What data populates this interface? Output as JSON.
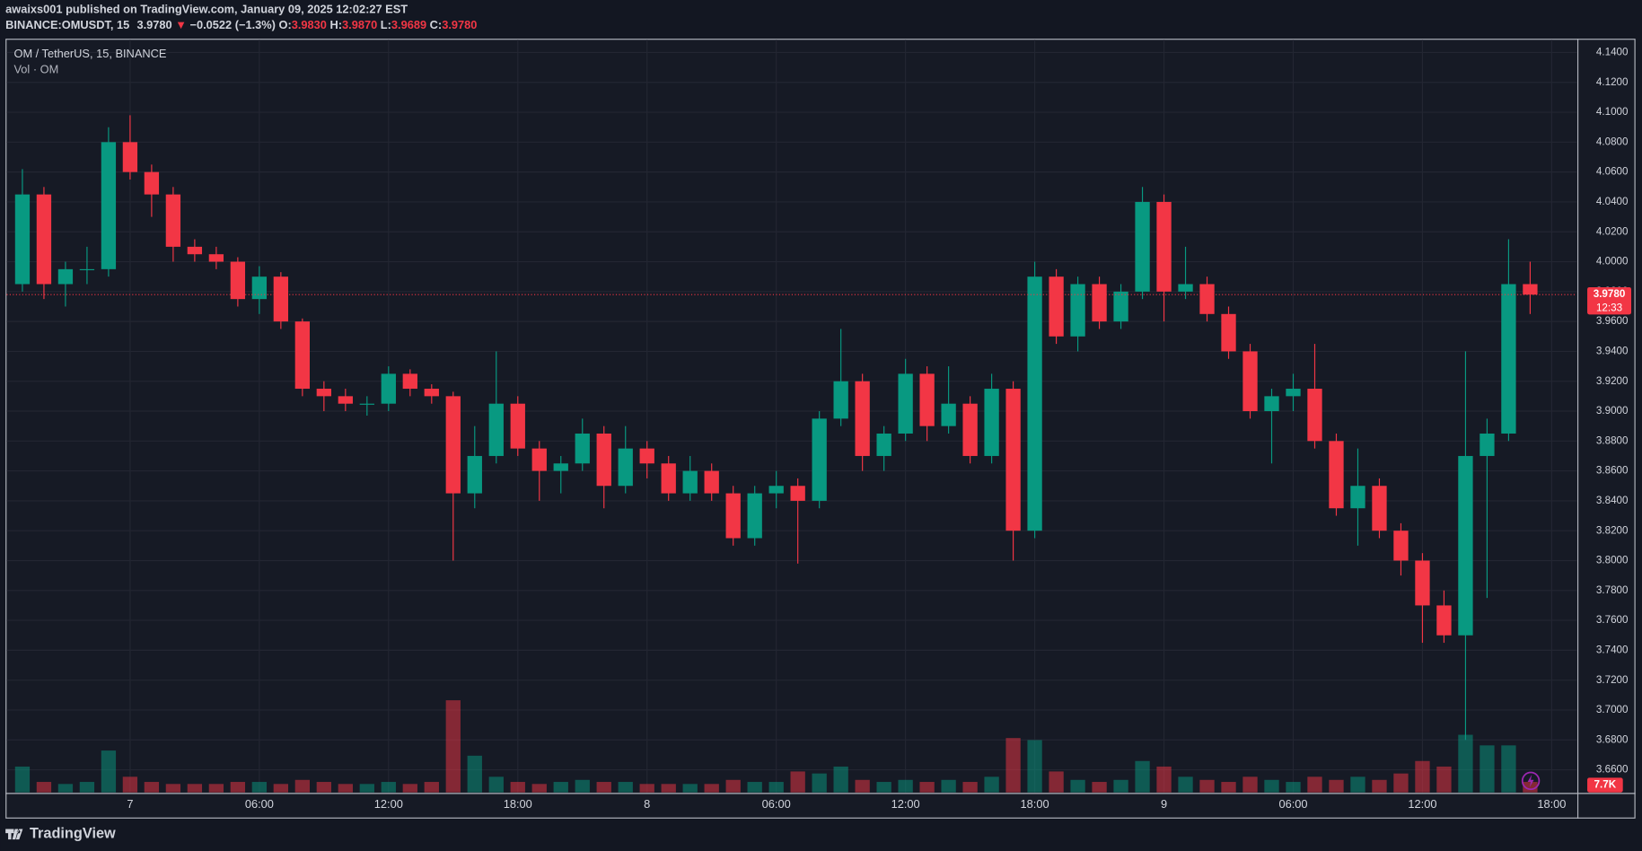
{
  "header": {
    "publisher": "awaixs001 published on TradingView.com, January 09, 2025 12:02:27 EST",
    "symbol": "BINANCE:OMUSDT, 15",
    "last": {
      "value": 3.978,
      "label": "3.9780"
    },
    "arrow": "▼",
    "change": "−0.0522 (−1.3%)",
    "open_label": "O:",
    "open": {
      "value": 3.983,
      "label": "3.9830"
    },
    "high_label": "H:",
    "high": {
      "value": 3.987,
      "label": "3.9870"
    },
    "low_label": "L:",
    "low": {
      "value": 3.9689,
      "label": "3.9689"
    },
    "close_label": "C:",
    "close": {
      "value": 3.978,
      "label": "3.9780"
    }
  },
  "legend": {
    "title": "OM / TetherUS, 15, BINANCE",
    "volume": "Vol · OM"
  },
  "logo": "TradingView",
  "chart_data": {
    "type": "candlestick",
    "up_color": "#089981",
    "down_color": "#f23645",
    "grid": true,
    "categories": [
      null,
      null,
      null,
      null,
      null,
      "7",
      null,
      null,
      null,
      null,
      null,
      "06:00",
      null,
      null,
      null,
      null,
      null,
      "12:00",
      null,
      null,
      null,
      null,
      null,
      "18:00",
      null,
      null,
      null,
      null,
      null,
      "8",
      null,
      null,
      null,
      null,
      null,
      "06:00",
      null,
      null,
      null,
      null,
      null,
      "12:00",
      null,
      null,
      null,
      null,
      null,
      "18:00",
      null,
      null,
      null,
      null,
      null,
      "9",
      null,
      null,
      null,
      null,
      null,
      "06:00",
      null,
      null,
      null,
      null,
      null,
      "12:00",
      null,
      null,
      null,
      null,
      null,
      "18:00"
    ],
    "open": [
      3.985,
      4.045,
      3.985,
      3.995,
      3.995,
      4.08,
      4.06,
      4.045,
      4.01,
      4.005,
      4.0,
      3.975,
      3.99,
      3.96,
      3.915,
      3.91,
      3.905,
      3.905,
      3.925,
      3.915,
      3.91,
      3.845,
      3.87,
      3.905,
      3.875,
      3.86,
      3.865,
      3.885,
      3.85,
      3.875,
      3.865,
      3.845,
      3.86,
      3.845,
      3.815,
      3.845,
      3.85,
      3.84,
      3.895,
      3.92,
      3.87,
      3.885,
      3.925,
      3.89,
      3.905,
      3.87,
      3.915,
      3.82,
      3.99,
      3.95,
      3.985,
      3.96,
      3.98,
      4.04,
      3.98,
      3.985,
      3.965,
      3.94,
      3.9,
      3.91,
      3.915,
      3.88,
      3.835,
      3.85,
      3.82,
      3.8,
      3.77,
      3.75,
      3.87,
      3.885,
      3.985,
      null
    ],
    "high": [
      4.062,
      4.05,
      4.0,
      4.01,
      4.09,
      4.098,
      4.065,
      4.05,
      4.015,
      4.01,
      4.003,
      3.997,
      3.993,
      3.962,
      3.92,
      3.915,
      3.91,
      3.93,
      3.928,
      3.918,
      3.913,
      3.89,
      3.94,
      3.91,
      3.88,
      3.87,
      3.895,
      3.89,
      3.89,
      3.88,
      3.87,
      3.87,
      3.865,
      3.85,
      3.85,
      3.86,
      3.855,
      3.9,
      3.955,
      3.925,
      3.89,
      3.935,
      3.93,
      3.93,
      3.91,
      3.925,
      3.92,
      4.0,
      3.995,
      3.99,
      3.99,
      3.985,
      4.05,
      4.045,
      4.01,
      3.99,
      3.97,
      3.945,
      3.915,
      3.925,
      3.945,
      3.885,
      3.875,
      3.855,
      3.825,
      3.805,
      3.78,
      3.94,
      3.895,
      4.015,
      4.0,
      null
    ],
    "low": [
      3.98,
      3.975,
      3.97,
      3.985,
      3.99,
      4.055,
      4.03,
      4.0,
      4.0,
      3.995,
      3.97,
      3.965,
      3.955,
      3.91,
      3.9,
      3.9,
      3.897,
      3.9,
      3.91,
      3.905,
      3.8,
      3.835,
      3.865,
      3.87,
      3.84,
      3.845,
      3.86,
      3.835,
      3.845,
      3.855,
      3.84,
      3.84,
      3.84,
      3.81,
      3.81,
      3.835,
      3.798,
      3.835,
      3.89,
      3.86,
      3.86,
      3.88,
      3.88,
      3.885,
      3.865,
      3.865,
      3.8,
      3.815,
      3.945,
      3.94,
      3.955,
      3.955,
      3.975,
      3.96,
      3.975,
      3.96,
      3.935,
      3.895,
      3.865,
      3.9,
      3.875,
      3.83,
      3.81,
      3.815,
      3.79,
      3.745,
      3.745,
      3.68,
      3.775,
      3.88,
      3.965,
      null
    ],
    "close": [
      4.045,
      3.985,
      3.995,
      3.995,
      4.08,
      4.06,
      4.045,
      4.01,
      4.005,
      4.0,
      3.975,
      3.99,
      3.96,
      3.915,
      3.91,
      3.905,
      3.905,
      3.925,
      3.915,
      3.91,
      3.845,
      3.87,
      3.905,
      3.875,
      3.86,
      3.865,
      3.885,
      3.85,
      3.875,
      3.865,
      3.845,
      3.86,
      3.845,
      3.815,
      3.845,
      3.85,
      3.84,
      3.895,
      3.92,
      3.87,
      3.885,
      3.925,
      3.89,
      3.905,
      3.87,
      3.915,
      3.82,
      3.99,
      3.95,
      3.985,
      3.96,
      3.98,
      4.04,
      3.98,
      3.985,
      3.965,
      3.94,
      3.9,
      3.91,
      3.915,
      3.88,
      3.835,
      3.85,
      3.82,
      3.8,
      3.77,
      3.75,
      3.87,
      3.885,
      3.985,
      3.978,
      null
    ],
    "volume": [
      19000,
      7700,
      6200,
      7700,
      30800,
      11500,
      7700,
      6200,
      6200,
      6200,
      7700,
      7700,
      6200,
      9200,
      7700,
      6200,
      6200,
      7700,
      6200,
      7700,
      67800,
      27000,
      11500,
      7700,
      6200,
      7700,
      9200,
      7700,
      7700,
      6200,
      6200,
      6200,
      6200,
      9200,
      7700,
      7700,
      15400,
      13900,
      19000,
      9200,
      7700,
      9200,
      7700,
      9200,
      7700,
      11500,
      40000,
      38500,
      15400,
      9200,
      7700,
      9200,
      23100,
      19000,
      11500,
      9200,
      7700,
      11500,
      9200,
      7700,
      11500,
      9200,
      11500,
      9200,
      13900,
      23100,
      19000,
      42400,
      34600,
      34600,
      7700,
      null
    ],
    "volume_labels": {
      "70": "7.7K"
    },
    "last_price": {
      "value": 3.978,
      "label": "3.9780"
    },
    "countdown": "12:33",
    "ylim": [
      3.6449,
      4.1485
    ],
    "yticks": [
      {
        "value": 3.66,
        "label": "3.6600"
      },
      {
        "value": 3.68,
        "label": "3.6800"
      },
      {
        "value": 3.7,
        "label": "3.7000"
      },
      {
        "value": 3.72,
        "label": "3.7200"
      },
      {
        "value": 3.74,
        "label": "3.7400"
      },
      {
        "value": 3.76,
        "label": "3.7600"
      },
      {
        "value": 3.78,
        "label": "3.7800"
      },
      {
        "value": 3.8,
        "label": "3.8000"
      },
      {
        "value": 3.82,
        "label": "3.8200"
      },
      {
        "value": 3.84,
        "label": "3.8400"
      },
      {
        "value": 3.86,
        "label": "3.8600"
      },
      {
        "value": 3.88,
        "label": "3.8800"
      },
      {
        "value": 3.9,
        "label": "3.9000"
      },
      {
        "value": 3.92,
        "label": "3.9200"
      },
      {
        "value": 3.94,
        "label": "3.9400"
      },
      {
        "value": 3.96,
        "label": "3.9600"
      },
      {
        "value": 3.98,
        "label": "3.9800"
      },
      {
        "value": 4.0,
        "label": "4.0000"
      },
      {
        "value": 4.02,
        "label": "4.0200"
      },
      {
        "value": 4.04,
        "label": "4.0400"
      },
      {
        "value": 4.06,
        "label": "4.0600"
      },
      {
        "value": 4.08,
        "label": "4.0800"
      },
      {
        "value": 4.1,
        "label": "4.1000"
      },
      {
        "value": 4.12,
        "label": "4.1200"
      },
      {
        "value": 4.14,
        "label": "4.1400"
      }
    ]
  }
}
